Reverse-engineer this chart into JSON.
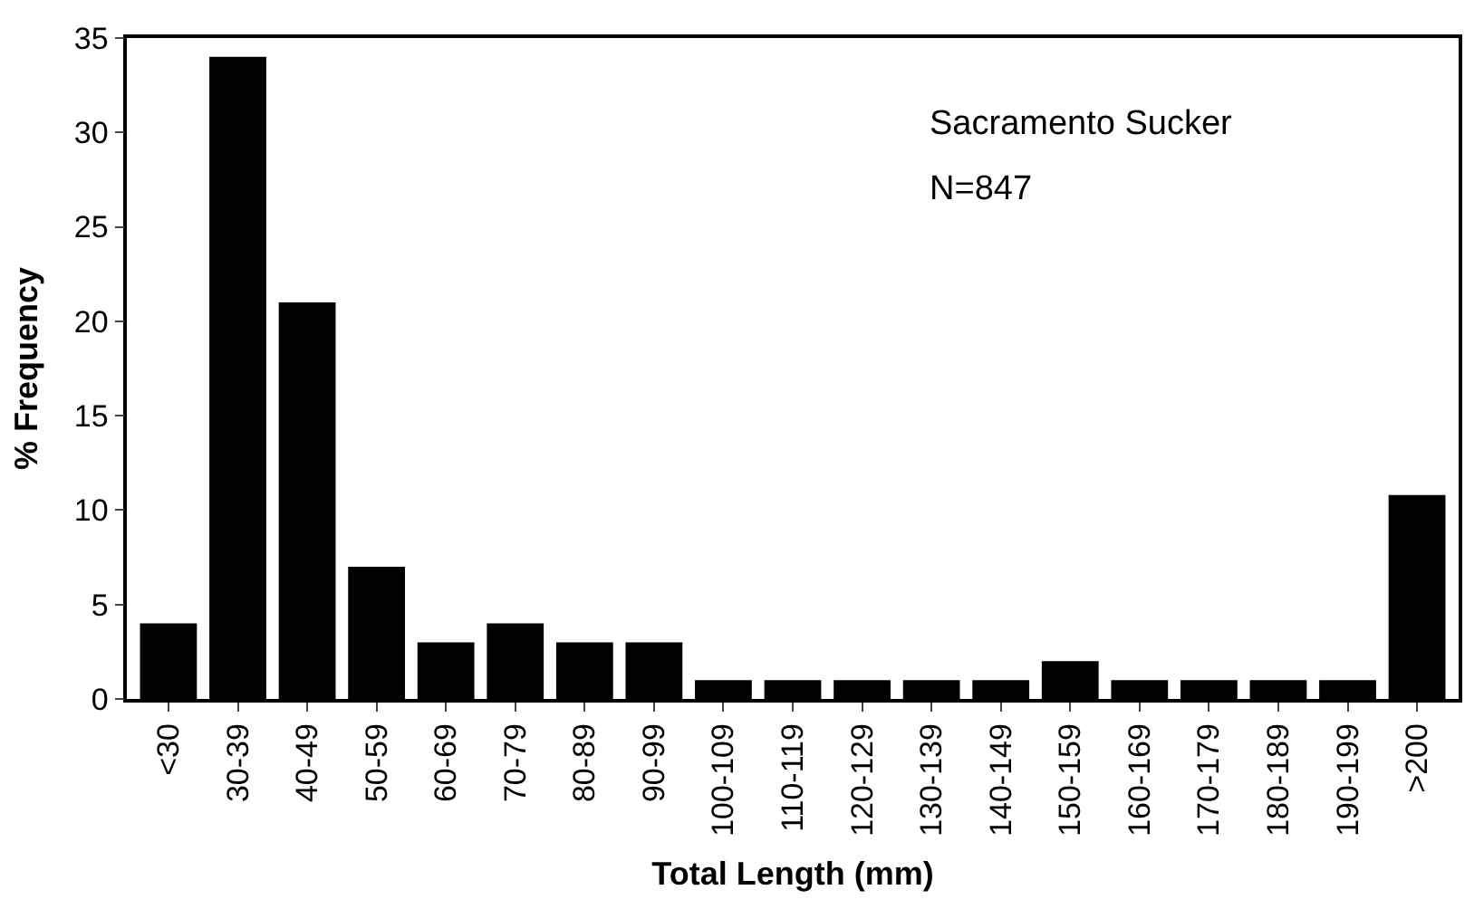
{
  "chart_data": {
    "type": "bar",
    "xlabel": "Total Length (mm)",
    "ylabel": "% Frequency",
    "categories": [
      "<30",
      "30-39",
      "40-49",
      "50-59",
      "60-69",
      "70-79",
      "80-89",
      "90-99",
      "100-109",
      "110-119",
      "120-129",
      "130-139",
      "140-149",
      "150-159",
      "160-169",
      "170-179",
      "180-189",
      "190-199",
      ">200"
    ],
    "values": [
      4,
      34,
      21,
      7,
      3,
      4,
      3,
      3,
      1,
      1,
      1,
      1,
      1,
      2,
      1,
      1,
      1,
      1,
      10.8
    ],
    "color": "#000000",
    "ylim": [
      0,
      35
    ],
    "yticks": [
      0,
      5,
      10,
      15,
      20,
      25,
      30,
      35
    ],
    "grid": false,
    "annotations": [
      "Sacramento Sucker",
      "N=847"
    ]
  }
}
